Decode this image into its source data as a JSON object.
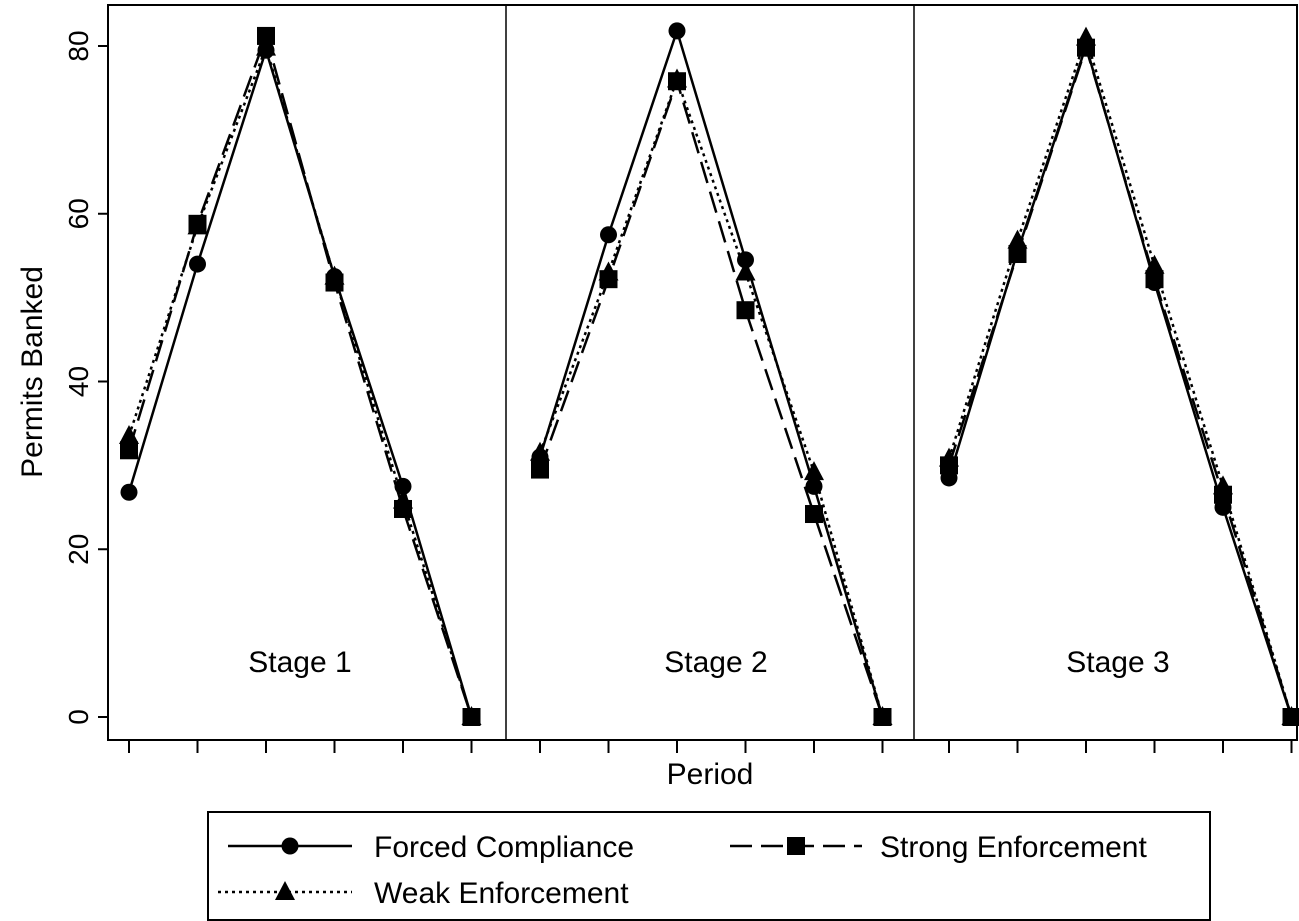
{
  "chart_data": {
    "type": "line",
    "xlabel": "Period",
    "ylabel": "Permits Banked",
    "ylim": [
      0,
      80
    ],
    "yticks": [
      "0",
      "20",
      "40",
      "60",
      "80"
    ],
    "grid": false,
    "legend_position": "bottom",
    "panels": [
      {
        "label": "Stage 1",
        "periods": [
          1,
          2,
          3,
          4,
          5,
          6
        ],
        "series": [
          {
            "name": "Forced Compliance",
            "values": [
              26.8,
              54.0,
              79.5,
              52.5,
              27.5,
              0
            ]
          },
          {
            "name": "Strong Enforcement",
            "values": [
              31.8,
              58.8,
              81.2,
              51.8,
              24.8,
              0
            ]
          },
          {
            "name": "Weak Enforcement",
            "values": [
              33.5,
              58.5,
              79.8,
              52.5,
              25.8,
              0
            ]
          }
        ]
      },
      {
        "label": "Stage 2",
        "periods": [
          1,
          2,
          3,
          4,
          5,
          6
        ],
        "series": [
          {
            "name": "Forced Compliance",
            "values": [
              31.0,
              57.5,
              81.8,
              54.5,
              27.5,
              0
            ]
          },
          {
            "name": "Strong Enforcement",
            "values": [
              29.5,
              52.2,
              75.8,
              48.5,
              24.2,
              0
            ]
          },
          {
            "name": "Weak Enforcement",
            "values": [
              31.5,
              53.0,
              76.0,
              53.0,
              29.2,
              0
            ]
          }
        ]
      },
      {
        "label": "Stage 3",
        "periods": [
          1,
          2,
          3,
          4,
          5,
          6
        ],
        "series": [
          {
            "name": "Forced Compliance",
            "values": [
              28.5,
              55.5,
              80.0,
              51.8,
              25.0,
              0
            ]
          },
          {
            "name": "Strong Enforcement",
            "values": [
              30.0,
              55.2,
              79.8,
              52.2,
              26.5,
              0
            ]
          },
          {
            "name": "Weak Enforcement",
            "values": [
              30.8,
              56.8,
              81.0,
              53.8,
              27.5,
              0
            ]
          }
        ]
      }
    ],
    "series_styles": [
      {
        "name": "Forced Compliance",
        "dash": "solid",
        "marker": "circle",
        "color": "#000000"
      },
      {
        "name": "Strong Enforcement",
        "dash": "dashed",
        "marker": "square",
        "color": "#000000"
      },
      {
        "name": "Weak Enforcement",
        "dash": "dotted",
        "marker": "triangle",
        "color": "#000000"
      }
    ]
  },
  "legend": {
    "items": [
      {
        "label": "Forced Compliance",
        "marker": "circle",
        "dash": "solid"
      },
      {
        "label": "Strong Enforcement",
        "marker": "square",
        "dash": "dashed"
      },
      {
        "label": "Weak Enforcement",
        "marker": "triangle",
        "dash": "dotted"
      }
    ]
  }
}
